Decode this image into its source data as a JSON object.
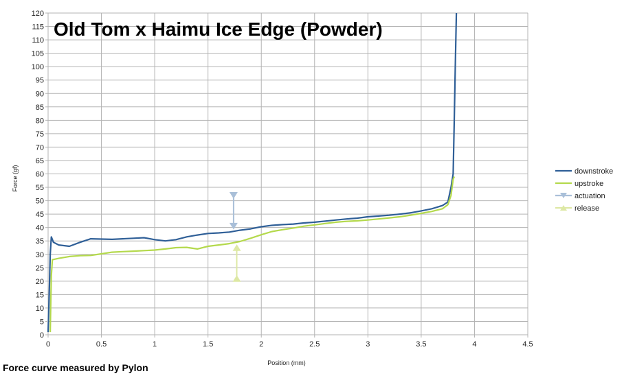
{
  "chart_data": {
    "type": "line",
    "title": "Old Tom x Haimu Ice Edge (Powder)",
    "xlabel": "Position (mm)",
    "ylabel": "Force (gf)",
    "xlim": [
      0,
      4.5
    ],
    "ylim": [
      0,
      120
    ],
    "xticks": [
      "0",
      "0.5",
      "1",
      "1.5",
      "2",
      "2.5",
      "3",
      "3.5",
      "4",
      "4.5"
    ],
    "yticks": [
      "0",
      "5",
      "10",
      "15",
      "20",
      "25",
      "30",
      "35",
      "40",
      "45",
      "50",
      "55",
      "60",
      "65",
      "70",
      "75",
      "80",
      "85",
      "90",
      "95",
      "100",
      "105",
      "110",
      "115",
      "120"
    ],
    "grid": true,
    "legend_position": "right",
    "series": [
      {
        "name": "downstroke",
        "color": "#2f5f97",
        "marker": "none",
        "points": [
          [
            0,
            1
          ],
          [
            0.01,
            15
          ],
          [
            0.02,
            30
          ],
          [
            0.03,
            36.5
          ],
          [
            0.05,
            34.5
          ],
          [
            0.1,
            33.5
          ],
          [
            0.2,
            33
          ],
          [
            0.3,
            34.5
          ],
          [
            0.4,
            35.8
          ],
          [
            0.5,
            35.7
          ],
          [
            0.6,
            35.6
          ],
          [
            0.7,
            35.8
          ],
          [
            0.8,
            36
          ],
          [
            0.9,
            36.2
          ],
          [
            1.0,
            35.5
          ],
          [
            1.1,
            35
          ],
          [
            1.2,
            35.5
          ],
          [
            1.3,
            36.5
          ],
          [
            1.4,
            37.2
          ],
          [
            1.5,
            37.8
          ],
          [
            1.6,
            38
          ],
          [
            1.7,
            38.3
          ],
          [
            1.8,
            39
          ],
          [
            1.9,
            39.5
          ],
          [
            2.0,
            40.3
          ],
          [
            2.1,
            40.8
          ],
          [
            2.2,
            41.1
          ],
          [
            2.3,
            41.3
          ],
          [
            2.4,
            41.7
          ],
          [
            2.5,
            42
          ],
          [
            2.6,
            42.4
          ],
          [
            2.7,
            42.8
          ],
          [
            2.8,
            43.2
          ],
          [
            2.9,
            43.5
          ],
          [
            3.0,
            44
          ],
          [
            3.1,
            44.3
          ],
          [
            3.2,
            44.6
          ],
          [
            3.3,
            45
          ],
          [
            3.4,
            45.5
          ],
          [
            3.5,
            46.2
          ],
          [
            3.6,
            47
          ],
          [
            3.7,
            48.2
          ],
          [
            3.75,
            49.5
          ],
          [
            3.78,
            55
          ],
          [
            3.8,
            60
          ],
          [
            3.81,
            80
          ],
          [
            3.82,
            100
          ],
          [
            3.83,
            120
          ]
        ]
      },
      {
        "name": "upstroke",
        "color": "#b4d94c",
        "marker": "none",
        "points": [
          [
            0.02,
            1
          ],
          [
            0.025,
            12
          ],
          [
            0.03,
            22
          ],
          [
            0.04,
            28
          ],
          [
            0.1,
            28.5
          ],
          [
            0.2,
            29.2
          ],
          [
            0.3,
            29.5
          ],
          [
            0.4,
            29.6
          ],
          [
            0.5,
            30.2
          ],
          [
            0.6,
            30.8
          ],
          [
            0.7,
            31
          ],
          [
            0.8,
            31.2
          ],
          [
            0.9,
            31.4
          ],
          [
            1.0,
            31.6
          ],
          [
            1.1,
            32
          ],
          [
            1.2,
            32.5
          ],
          [
            1.3,
            32.6
          ],
          [
            1.4,
            32
          ],
          [
            1.5,
            33
          ],
          [
            1.6,
            33.5
          ],
          [
            1.7,
            34
          ],
          [
            1.8,
            34.8
          ],
          [
            1.9,
            36
          ],
          [
            2.0,
            37.3
          ],
          [
            2.1,
            38.5
          ],
          [
            2.2,
            39.2
          ],
          [
            2.3,
            39.8
          ],
          [
            2.4,
            40.5
          ],
          [
            2.5,
            41
          ],
          [
            2.6,
            41.5
          ],
          [
            2.7,
            42
          ],
          [
            2.8,
            42.3
          ],
          [
            2.9,
            42.5
          ],
          [
            3.0,
            42.8
          ],
          [
            3.1,
            43.2
          ],
          [
            3.2,
            43.6
          ],
          [
            3.3,
            44
          ],
          [
            3.4,
            44.6
          ],
          [
            3.5,
            45.3
          ],
          [
            3.6,
            46
          ],
          [
            3.7,
            47
          ],
          [
            3.75,
            48.5
          ],
          [
            3.78,
            52
          ],
          [
            3.8,
            58
          ],
          [
            3.81,
            59
          ]
        ]
      },
      {
        "name": "actuation",
        "color": "#a9bfd8",
        "marker": "triangle-down",
        "points": [
          [
            1.74,
            52
          ],
          [
            1.74,
            40.5
          ]
        ]
      },
      {
        "name": "release",
        "color": "#dde8a4",
        "marker": "triangle-up",
        "points": [
          [
            1.77,
            21
          ],
          [
            1.77,
            32.5
          ]
        ]
      }
    ]
  },
  "footer": {
    "note": "Force curve measured by Pylon"
  }
}
